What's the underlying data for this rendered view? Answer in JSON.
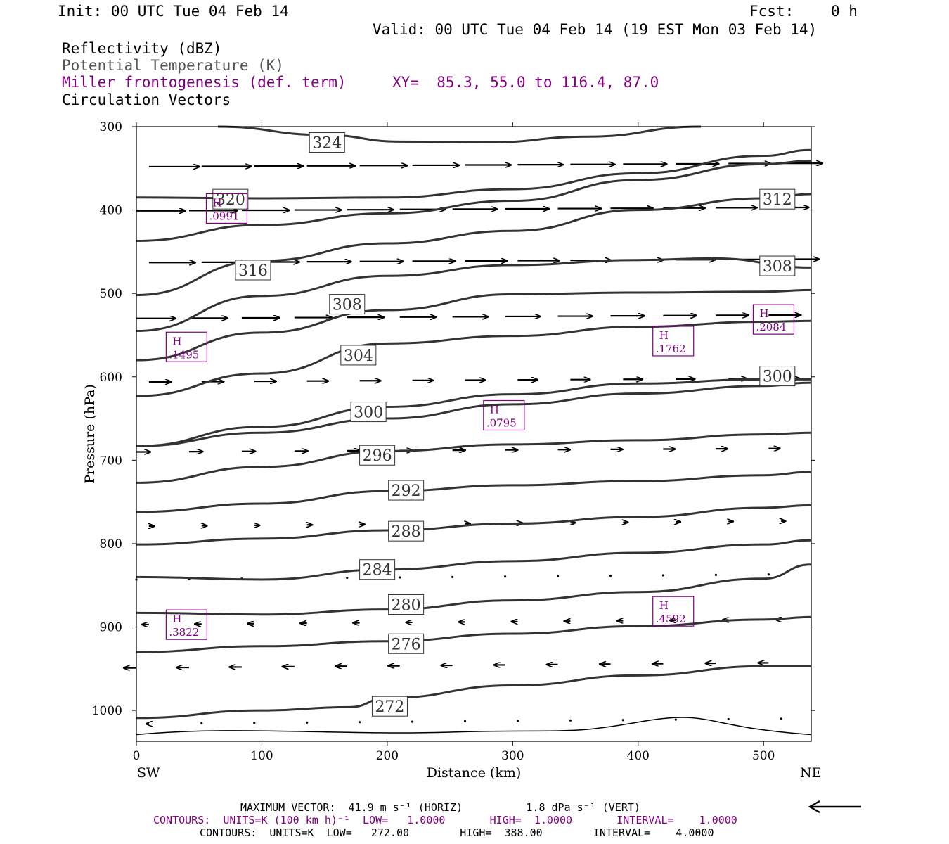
{
  "header": {
    "init": "Init: 00 UTC Tue 04 Feb 14",
    "fcst_label": "Fcst:",
    "fcst_value": "0 h",
    "valid": "Valid: 00 UTC Tue 04 Feb 14 (19 EST Mon 03 Feb 14)"
  },
  "legend": {
    "line1": "Reflectivity (dBZ)",
    "line2": "Potential Temperature (K)",
    "line3": "Miller frontogenesis (def. term)",
    "xy": "XY=  85.3, 55.0 to 116.4, 87.0",
    "line4": "Circulation Vectors"
  },
  "colors": {
    "contour": "#333333",
    "purple": "#800080",
    "gray": "#555555"
  },
  "footer": {
    "max_vector": "MAXIMUM VECTOR:  41.9 m s⁻¹ (HORIZ)          1.8 dPa s⁻¹ (VERT)",
    "contours1": "CONTOURS:  UNITS=K (100 km h)⁻¹  LOW=   1.0000       HIGH=  1.0000       INTERVAL=    1.0000",
    "contours2": "CONTOURS:  UNITS=K  LOW=   272.00        HIGH=  388.00        INTERVAL=    4.0000"
  },
  "chart_data": {
    "type": "line",
    "xlabel": "Distance (km)",
    "ylabel": "Pressure (hPa)",
    "xlim": [
      0,
      538
    ],
    "ylim": [
      1037,
      300
    ],
    "x_ticks": [
      "0",
      "100",
      "200",
      "300",
      "400",
      "500"
    ],
    "y_ticks": [
      "300",
      "400",
      "500",
      "600",
      "700",
      "800",
      "900",
      "1000"
    ],
    "left_end_label": "SW",
    "right_end_label": "NE",
    "theta_contours": [
      {
        "label": "324",
        "points": [
          [
            65,
            300
          ],
          [
            150,
            310
          ],
          [
            210,
            318
          ],
          [
            280,
            319
          ],
          [
            360,
            312
          ],
          [
            450,
            300
          ]
        ],
        "label_pos": [
          152,
          319
        ]
      },
      {
        "label": "320",
        "points": [
          [
            0,
            385
          ],
          [
            100,
            386
          ],
          [
            200,
            385
          ],
          [
            300,
            375
          ],
          [
            400,
            356
          ],
          [
            500,
            335
          ],
          [
            538,
            328
          ]
        ],
        "label_pos": [
          75,
          387
        ]
      },
      {
        "label": "316",
        "points": [
          [
            0,
            437
          ],
          [
            100,
            418
          ],
          [
            200,
            404
          ],
          [
            300,
            389
          ],
          [
            400,
            364
          ],
          [
            500,
            345
          ],
          [
            538,
            341
          ]
        ],
        "label_pos": [
          93,
          472
        ]
      },
      {
        "label": "312",
        "points": [
          [
            0,
            502
          ],
          [
            100,
            461
          ],
          [
            200,
            440
          ],
          [
            300,
            425
          ],
          [
            400,
            400
          ],
          [
            500,
            386
          ],
          [
            538,
            381
          ]
        ],
        "label_pos": [
          511,
          387
        ]
      },
      {
        "label": "308",
        "points": [
          [
            0,
            545
          ],
          [
            100,
            503
          ],
          [
            200,
            479
          ],
          [
            300,
            466
          ],
          [
            400,
            460
          ],
          [
            460,
            458
          ],
          [
            538,
            469
          ]
        ],
        "label_pos": [
          511,
          467
        ]
      },
      {
        "label": "308",
        "points": [
          [
            0,
            580
          ],
          [
            100,
            547
          ],
          [
            200,
            520
          ],
          [
            300,
            501
          ],
          [
            400,
            499
          ],
          [
            500,
            498
          ],
          [
            538,
            496
          ]
        ],
        "label_pos": [
          168,
          513
        ]
      },
      {
        "label": "304",
        "points": [
          [
            0,
            623
          ],
          [
            100,
            596
          ],
          [
            200,
            560
          ],
          [
            300,
            551
          ],
          [
            400,
            540
          ],
          [
            500,
            534
          ],
          [
            538,
            533
          ]
        ],
        "label_pos": [
          177,
          574
        ]
      },
      {
        "label": "300",
        "points": [
          [
            0,
            683
          ],
          [
            100,
            660
          ],
          [
            200,
            636
          ],
          [
            300,
            621
          ],
          [
            400,
            608
          ],
          [
            500,
            603
          ],
          [
            538,
            603
          ]
        ],
        "label_pos": [
          185,
          642
        ]
      },
      {
        "label": "300",
        "points": [
          [
            0,
            683
          ],
          [
            100,
            667
          ],
          [
            200,
            650
          ],
          [
            300,
            633
          ],
          [
            400,
            620
          ],
          [
            500,
            611
          ],
          [
            538,
            607
          ]
        ],
        "label_pos": [
          511,
          599
        ]
      },
      {
        "label": "296",
        "points": [
          [
            0,
            727
          ],
          [
            100,
            708
          ],
          [
            200,
            689
          ],
          [
            300,
            681
          ],
          [
            400,
            676
          ],
          [
            500,
            669
          ],
          [
            538,
            667
          ]
        ],
        "label_pos": [
          192,
          694
        ]
      },
      {
        "label": "292",
        "points": [
          [
            0,
            762
          ],
          [
            100,
            752
          ],
          [
            200,
            737
          ],
          [
            300,
            730
          ],
          [
            400,
            725
          ],
          [
            500,
            718
          ],
          [
            538,
            714
          ]
        ],
        "label_pos": [
          215,
          736
        ]
      },
      {
        "label": "288",
        "points": [
          [
            0,
            801
          ],
          [
            100,
            794
          ],
          [
            200,
            784
          ],
          [
            300,
            776
          ],
          [
            400,
            768
          ],
          [
            500,
            757
          ],
          [
            538,
            754
          ]
        ],
        "label_pos": [
          215,
          785
        ]
      },
      {
        "label": "284",
        "points": [
          [
            0,
            840
          ],
          [
            100,
            843
          ],
          [
            200,
            831
          ],
          [
            300,
            821
          ],
          [
            400,
            811
          ],
          [
            500,
            801
          ],
          [
            538,
            796
          ]
        ],
        "label_pos": [
          192,
          831
        ]
      },
      {
        "label": "280",
        "points": [
          [
            0,
            883
          ],
          [
            100,
            885
          ],
          [
            200,
            879
          ],
          [
            300,
            868
          ],
          [
            400,
            858
          ],
          [
            500,
            842
          ],
          [
            538,
            825
          ]
        ],
        "label_pos": [
          215,
          873
        ]
      },
      {
        "label": "276",
        "points": [
          [
            0,
            930
          ],
          [
            100,
            923
          ],
          [
            200,
            917
          ],
          [
            300,
            908
          ],
          [
            400,
            899
          ],
          [
            500,
            891
          ],
          [
            538,
            888
          ]
        ],
        "label_pos": [
          215,
          920
        ]
      },
      {
        "label": "272",
        "points": [
          [
            0,
            1009
          ],
          [
            100,
            1000
          ],
          [
            170,
            996
          ],
          [
            200,
            985
          ],
          [
            300,
            970
          ],
          [
            400,
            958
          ],
          [
            500,
            947
          ],
          [
            538,
            947
          ]
        ],
        "label_pos": [
          202,
          995
        ]
      }
    ],
    "frontogenesis_highs": [
      {
        "label": "H",
        "value": ".0991",
        "pos": [
          72,
          399
        ]
      },
      {
        "label": "H",
        "value": ".1495",
        "pos": [
          40,
          565
        ]
      },
      {
        "label": "H",
        "value": ".2084",
        "pos": [
          508,
          532
        ]
      },
      {
        "label": "H",
        "value": ".1762",
        "pos": [
          428,
          558
        ]
      },
      {
        "label": "H",
        "value": ".0795",
        "pos": [
          293,
          647
        ]
      },
      {
        "label": "H",
        "value": ".3822",
        "pos": [
          40,
          898
        ]
      },
      {
        "label": "H",
        "value": ".4592",
        "pos": [
          428,
          882
        ]
      }
    ]
  }
}
